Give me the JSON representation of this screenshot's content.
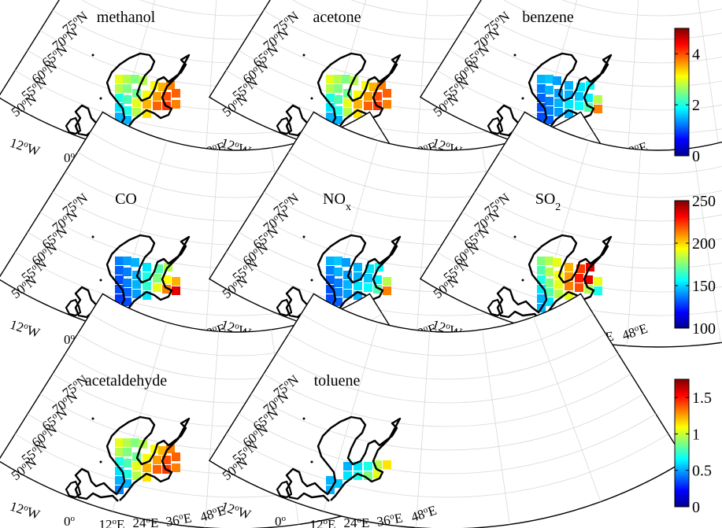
{
  "figure": {
    "panels": [
      {
        "title": "methanol",
        "sub": "",
        "scale": "a",
        "pattern": "high-east"
      },
      {
        "title": "acetone",
        "sub": "",
        "scale": "a",
        "pattern": "high-east"
      },
      {
        "title": "benzene",
        "sub": "",
        "scale": "a",
        "pattern": "low-blue"
      },
      {
        "title": "CO",
        "sub": "",
        "scale": "b",
        "pattern": "co"
      },
      {
        "title": "NO",
        "sub": "x",
        "scale": "b",
        "pattern": "low-blue"
      },
      {
        "title": "SO",
        "sub": "2",
        "scale": "b",
        "pattern": "so2"
      },
      {
        "title": "acetaldehyde",
        "sub": "",
        "scale": "c",
        "pattern": "high-east"
      },
      {
        "title": "toluene",
        "sub": "",
        "scale": "c",
        "pattern": "toluene"
      }
    ],
    "lat_labels": [
      "75",
      "70",
      "65",
      "60",
      "55",
      "50"
    ],
    "lon_labels": [
      {
        "v": "12",
        "dir": "W"
      },
      {
        "v": "0",
        "dir": ""
      },
      {
        "v": "12",
        "dir": "E"
      },
      {
        "v": "24",
        "dir": "E"
      },
      {
        "v": "36",
        "dir": "E"
      },
      {
        "v": "48",
        "dir": "E"
      }
    ],
    "lat_dir": "N",
    "degree_symbol": "o",
    "colorbars": [
      {
        "id": "a",
        "ticks": [
          "0",
          "2",
          "4"
        ],
        "min": 0,
        "max": 5
      },
      {
        "id": "b",
        "ticks": [
          "100",
          "150",
          "200",
          "250"
        ],
        "min": 100,
        "max": 250
      },
      {
        "id": "c",
        "ticks": [
          "0",
          "0.5",
          "1",
          "1.5"
        ],
        "min": 0,
        "max": 1.75
      }
    ]
  }
}
